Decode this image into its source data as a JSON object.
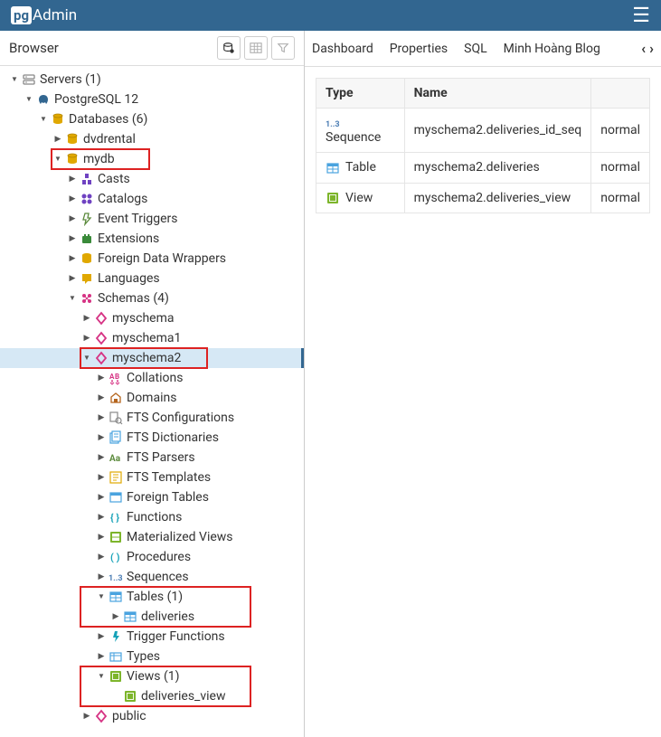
{
  "app": {
    "name": "Admin",
    "prefix": "pg"
  },
  "sidebar": {
    "title": "Browser"
  },
  "tabs": [
    "Dashboard",
    "Properties",
    "SQL",
    "Minh Hoàng Blog"
  ],
  "table": {
    "headers": [
      "Type",
      "Name",
      ""
    ],
    "rows": [
      {
        "type": "Sequence",
        "name": "myschema2.deliveries_id_seq",
        "extra": "normal",
        "icon": "seq"
      },
      {
        "type": "Table",
        "name": "myschema2.deliveries",
        "extra": "normal",
        "icon": "table"
      },
      {
        "type": "View",
        "name": "myschema2.deliveries_view",
        "extra": "normal",
        "icon": "view"
      }
    ]
  },
  "tree": {
    "servers": "Servers (1)",
    "pg": "PostgreSQL 12",
    "databases": "Databases (6)",
    "dvdrental": "dvdrental",
    "mydb": "mydb",
    "casts": "Casts",
    "catalogs": "Catalogs",
    "event_triggers": "Event Triggers",
    "extensions": "Extensions",
    "fdw": "Foreign Data Wrappers",
    "languages": "Languages",
    "schemas": "Schemas (4)",
    "myschema": "myschema",
    "myschema1": "myschema1",
    "myschema2": "myschema2",
    "collations": "Collations",
    "domains": "Domains",
    "fts_config": "FTS Configurations",
    "fts_dict": "FTS Dictionaries",
    "fts_parsers": "FTS Parsers",
    "fts_templates": "FTS Templates",
    "foreign_tables": "Foreign Tables",
    "functions": "Functions",
    "mat_views": "Materialized Views",
    "procedures": "Procedures",
    "sequences": "Sequences",
    "tables": "Tables (1)",
    "deliveries": "deliveries",
    "trigger_functions": "Trigger Functions",
    "types": "Types",
    "views": "Views (1)",
    "deliveries_view": "deliveries_view",
    "public": "public"
  },
  "colors": {
    "server": "#888",
    "elephant": "#326690",
    "db": "#e0a800",
    "schema": "#d63384",
    "diamond": "#d63384",
    "table": "#4aa3df",
    "view": "#7db52b",
    "seq": "#4a7cb3",
    "cast": "#6f42c1",
    "catalog": "#6f42c1",
    "event": "#5b8a3c",
    "ext": "#3a8a3a",
    "fdw": "#e0a800",
    "lang": "#e0a800",
    "coll": "#d63384",
    "domain": "#b5651d",
    "fts": "#888",
    "ftsd": "#4aa3df",
    "ftsp": "#5b8a3c",
    "ftst": "#e0a800",
    "ft": "#4aa3df",
    "func": "#17a2b8",
    "mview": "#7db52b",
    "proc": "#17a2b8",
    "trig": "#17a2b8",
    "type": "#4aa3df",
    "public": "#d63384"
  }
}
